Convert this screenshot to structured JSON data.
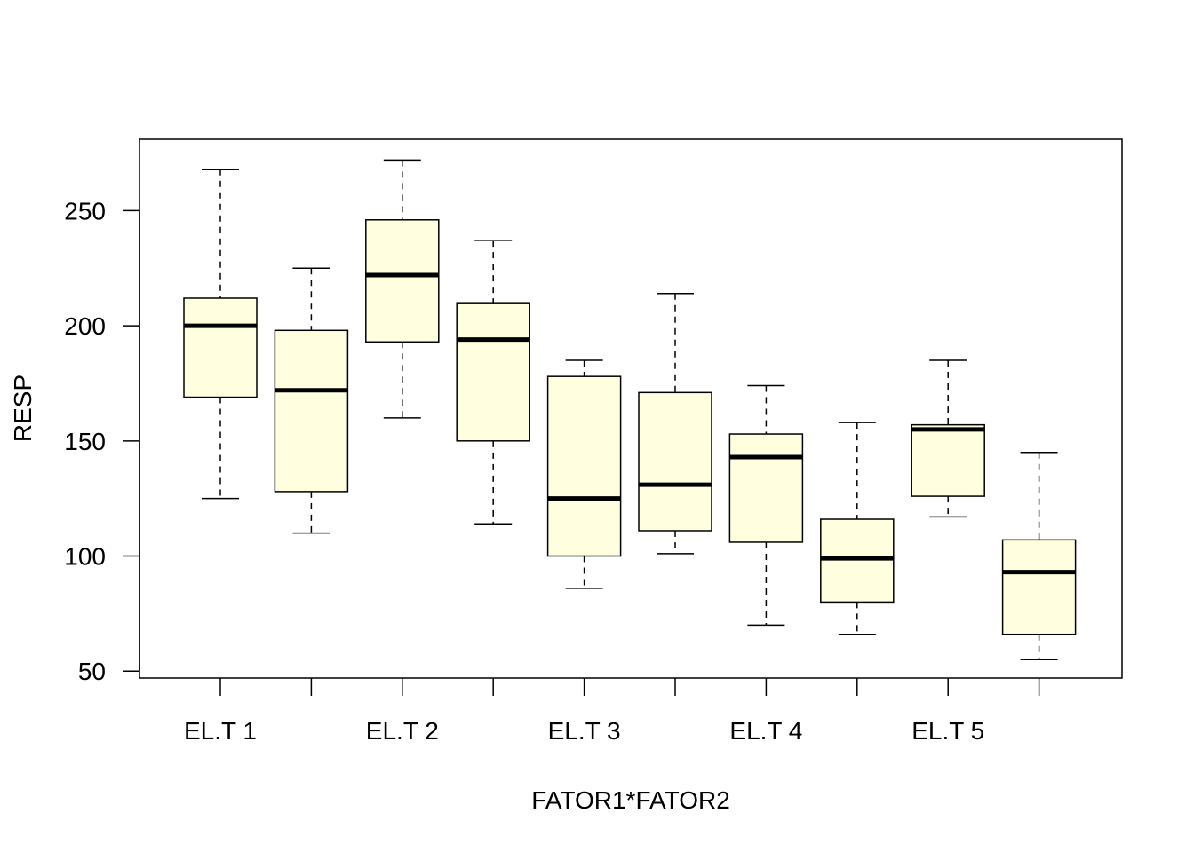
{
  "chart_data": {
    "type": "box",
    "xlabel": "FATOR1*FATOR2",
    "ylabel": "RESP",
    "ylim": [
      47,
      281
    ],
    "yticks": [
      50,
      100,
      150,
      200,
      250
    ],
    "xtick_labels": [
      "EL.T 1",
      "",
      "EL.T 2",
      "",
      "EL.T 3",
      "",
      "EL.T 4",
      "",
      "EL.T 5",
      ""
    ],
    "box_fill": "#FFFFE0",
    "grid": false,
    "boxes": [
      {
        "min": 125,
        "q1": 169,
        "median": 200,
        "q3": 212,
        "max": 268
      },
      {
        "min": 110,
        "q1": 128,
        "median": 172,
        "q3": 198,
        "max": 225
      },
      {
        "min": 160,
        "q1": 193,
        "median": 222,
        "q3": 246,
        "max": 272
      },
      {
        "min": 114,
        "q1": 150,
        "median": 194,
        "q3": 210,
        "max": 237
      },
      {
        "min": 86,
        "q1": 100,
        "median": 125,
        "q3": 178,
        "max": 185
      },
      {
        "min": 101,
        "q1": 111,
        "median": 131,
        "q3": 171,
        "max": 214
      },
      {
        "min": 70,
        "q1": 106,
        "median": 143,
        "q3": 153,
        "max": 174
      },
      {
        "min": 66,
        "q1": 80,
        "median": 99,
        "q3": 116,
        "max": 158
      },
      {
        "min": 117,
        "q1": 126,
        "median": 155,
        "q3": 157,
        "max": 185
      },
      {
        "min": 55,
        "q1": 66,
        "median": 93,
        "q3": 107,
        "max": 145
      }
    ]
  }
}
